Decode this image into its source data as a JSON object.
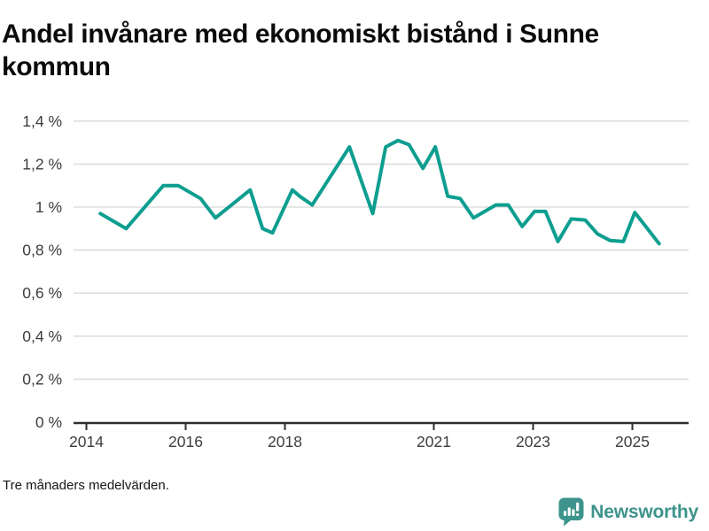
{
  "header": {
    "title": "Andel invånare med ekonomiskt bistånd i Sunne kommun"
  },
  "footer": {
    "note": "Tre månaders medelvärden.",
    "brand": "Newsworthy"
  },
  "colors": {
    "line": "#0d9e90",
    "grid": "#dedede",
    "axis": "#2e2e2e",
    "tick_label": "#3d3d3d",
    "brand": "#3e948c"
  },
  "chart_data": {
    "type": "line",
    "title": "Andel invånare med ekonomiskt bistånd i Sunne kommun",
    "subtitle_note": "Tre månaders medelvärden.",
    "y_unit": "%",
    "grid": "horizontal",
    "legend": "none",
    "xlim": [
      2013.74,
      2026.13
    ],
    "ylim": [
      0,
      1.45
    ],
    "x": [
      2014.28,
      2014.8,
      2015.55,
      2015.85,
      2016.3,
      2016.6,
      2017.3,
      2017.55,
      2017.75,
      2018.15,
      2018.3,
      2018.55,
      2019.3,
      2019.77,
      2020.03,
      2020.28,
      2020.5,
      2020.78,
      2021.03,
      2021.28,
      2021.53,
      2021.8,
      2022.25,
      2022.5,
      2022.78,
      2023.03,
      2023.25,
      2023.5,
      2023.77,
      2024.05,
      2024.3,
      2024.55,
      2024.82,
      2025.05,
      2025.54
    ],
    "y": [
      0.97,
      0.9,
      1.1,
      1.1,
      1.04,
      0.95,
      1.08,
      0.9,
      0.88,
      1.08,
      1.05,
      1.01,
      1.28,
      0.97,
      1.28,
      1.31,
      1.29,
      1.18,
      1.28,
      1.05,
      1.04,
      0.95,
      1.01,
      1.01,
      0.91,
      0.98,
      0.98,
      0.84,
      0.945,
      0.94,
      0.875,
      0.845,
      0.84,
      0.975,
      0.83
    ],
    "y_ticks": [
      {
        "value": 0,
        "label": "0 %"
      },
      {
        "value": 0.2,
        "label": "0,2 %"
      },
      {
        "value": 0.4,
        "label": "0,4 %"
      },
      {
        "value": 0.6,
        "label": "0,6 %"
      },
      {
        "value": 0.8,
        "label": "0,8 %"
      },
      {
        "value": 1.0,
        "label": "1 %"
      },
      {
        "value": 1.2,
        "label": "1,2 %"
      },
      {
        "value": 1.4,
        "label": "1,4 %"
      }
    ],
    "x_ticks": [
      {
        "value": 2014,
        "label": "2014"
      },
      {
        "value": 2016,
        "label": "2016"
      },
      {
        "value": 2018,
        "label": "2018"
      },
      {
        "value": 2021,
        "label": "2021"
      },
      {
        "value": 2023,
        "label": "2023"
      },
      {
        "value": 2025,
        "label": "2025"
      }
    ]
  }
}
